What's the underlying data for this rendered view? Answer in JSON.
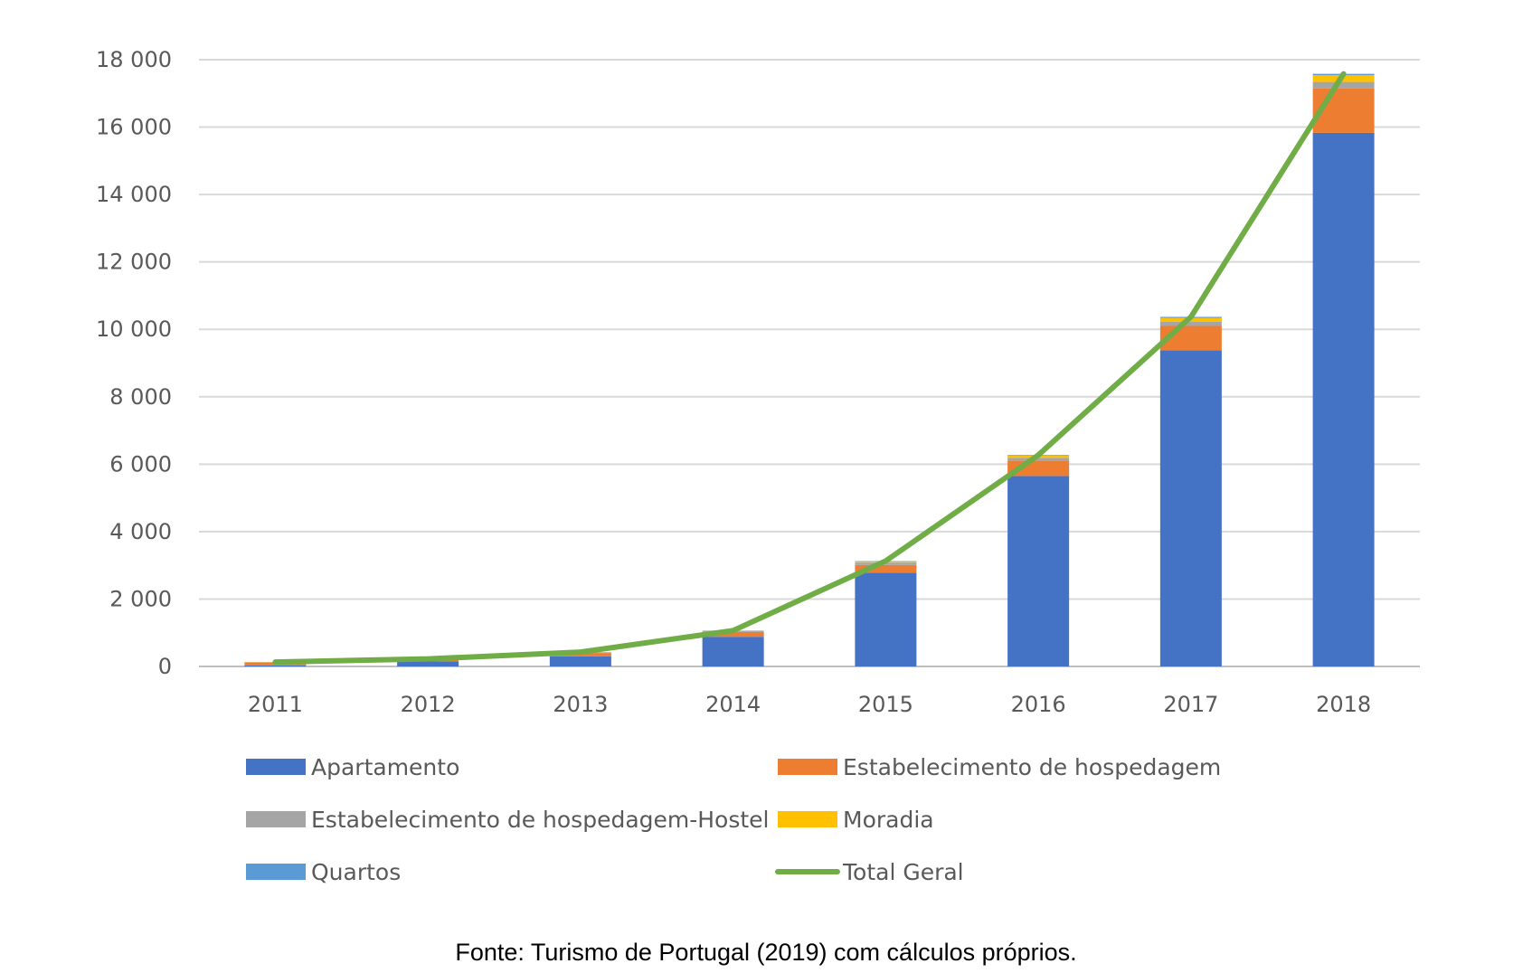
{
  "chart_data": {
    "type": "bar",
    "stacked": true,
    "categories": [
      "2011",
      "2012",
      "2013",
      "2014",
      "2015",
      "2016",
      "2017",
      "2018"
    ],
    "ylim": [
      0,
      18000
    ],
    "yticks": [
      0,
      2000,
      4000,
      6000,
      8000,
      10000,
      12000,
      14000,
      16000,
      18000
    ],
    "ytick_labels": [
      "0",
      "2 000",
      "4 000",
      "6 000",
      "8 000",
      "10 000",
      "12 000",
      "14 000",
      "16 000",
      "18 000"
    ],
    "grid": true,
    "legend_position": "bottom",
    "series": [
      {
        "name": "Apartamento",
        "color": "#4472C4",
        "values": [
          30,
          150,
          300,
          880,
          2780,
          5650,
          9380,
          15830
        ]
      },
      {
        "name": "Estabelecimento de hospedagem",
        "color": "#ED7D31",
        "values": [
          90,
          60,
          100,
          140,
          230,
          460,
          720,
          1320
        ]
      },
      {
        "name": "Estabelecimento de hospedagem-Hostel",
        "color": "#A5A5A5",
        "values": [
          5,
          10,
          15,
          25,
          70,
          80,
          130,
          190
        ]
      },
      {
        "name": "Moradia",
        "color": "#FFC000",
        "values": [
          5,
          5,
          10,
          15,
          40,
          60,
          110,
          200
        ]
      },
      {
        "name": "Quartos",
        "color": "#5B9BD5",
        "values": [
          0,
          0,
          0,
          5,
          10,
          20,
          30,
          40
        ]
      }
    ],
    "line": {
      "name": "Total Geral",
      "color": "#70AD47",
      "values": [
        130,
        225,
        425,
        1065,
        3130,
        6270,
        10370,
        17580
      ]
    }
  },
  "source": "Fonte: Turismo de Portugal (2019) com cálculos próprios."
}
